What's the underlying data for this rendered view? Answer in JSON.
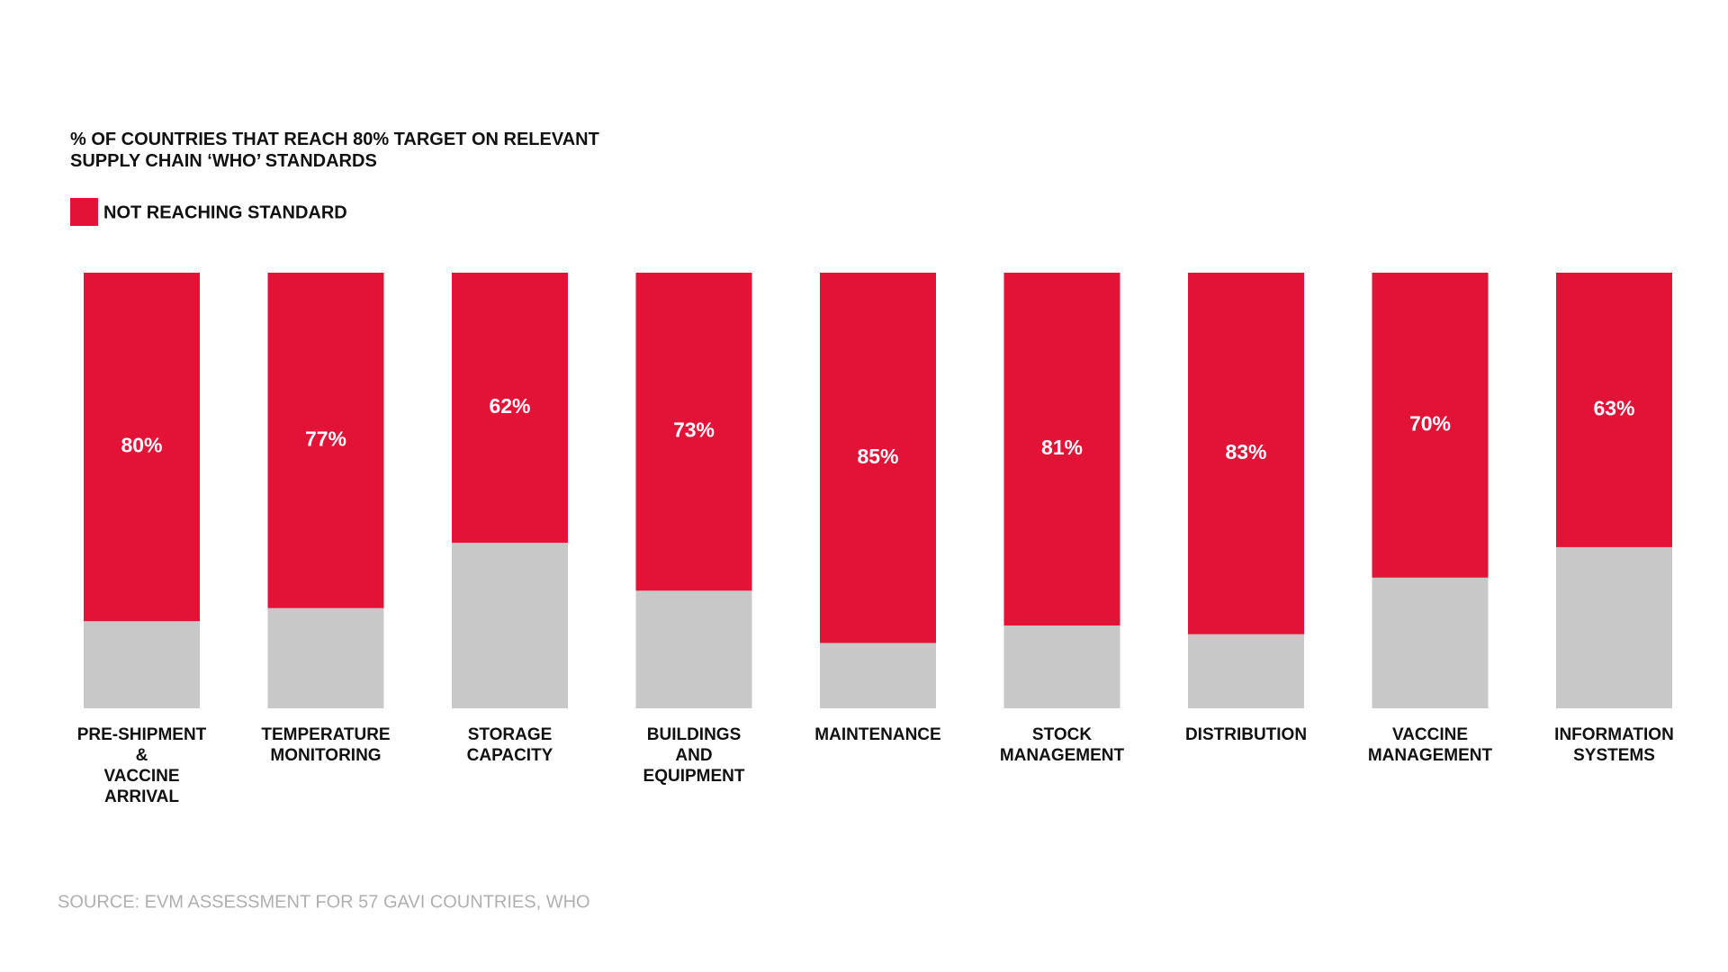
{
  "chart_data": {
    "type": "stacked_bar",
    "title": "% OF COUNTRIES THAT REACH 80% TARGET ON RELEVANT\nSUPPLY CHAIN ‘WHO’ STANDARDS",
    "source": "SOURCE: EVM ASSESSMENT FOR 57 GAVI COUNTRIES, WHO",
    "categories": [
      "PRE-SHIPMENT\n&\nVACCINE\nARRIVAL",
      "TEMPERATURE\nMONITORING",
      "STORAGE\nCAPACITY",
      "BUILDINGS\nAND\nEQUIPMENT",
      "MAINTENANCE",
      "STOCK\nMANAGEMENT",
      "DISTRIBUTION",
      "VACCINE\nMANAGEMENT",
      "INFORMATION\nSYSTEMS"
    ],
    "series": [
      {
        "color": "#c8c8c8",
        "values": [
          20,
          23,
          38,
          27,
          15,
          19,
          17,
          30,
          37
        ]
      },
      {
        "name": "NOT REACHING STANDARD",
        "color": "#e31337",
        "values": [
          80,
          77,
          62,
          73,
          85,
          81,
          83,
          70,
          63
        ],
        "value_labels": [
          "80%",
          "77%",
          "62%",
          "73%",
          "85%",
          "81%",
          "83%",
          "70%",
          "63%"
        ]
      }
    ],
    "ylim": [
      0,
      100
    ]
  }
}
